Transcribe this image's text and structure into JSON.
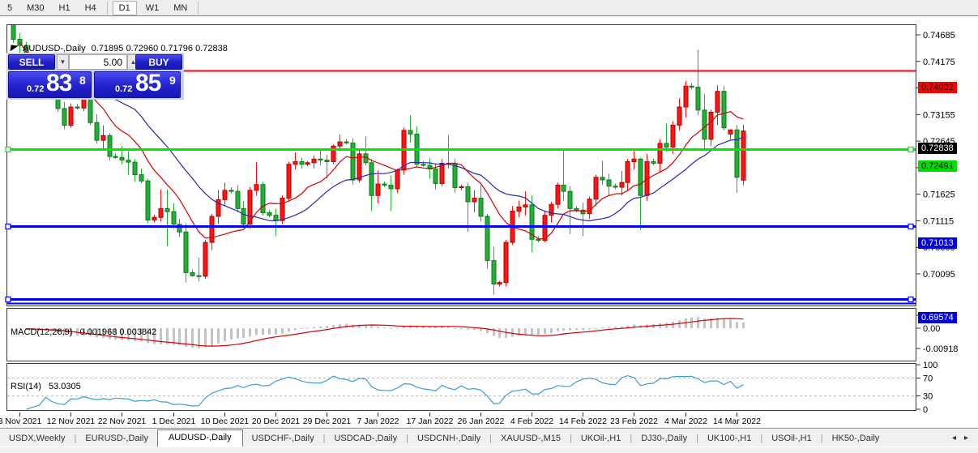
{
  "toolbar": {
    "items": [
      {
        "label": "5",
        "active": false
      },
      {
        "label": "M30",
        "active": false
      },
      {
        "label": "H1",
        "active": false
      },
      {
        "label": "H4",
        "active": false,
        "sep_after": true
      },
      {
        "label": "D1",
        "active": true
      },
      {
        "label": "W1",
        "active": false
      },
      {
        "label": "MN",
        "active": false,
        "sep_after": true
      }
    ]
  },
  "chart": {
    "title_symbol": "AUDUSD-,Daily",
    "title_ohlc": "0.71895 0.72960 0.71796 0.72838"
  },
  "one_click": {
    "sell_label": "SELL",
    "buy_label": "BUY",
    "volume": "5.00",
    "bid": {
      "small": "0.72",
      "big": "83",
      "sup": "8"
    },
    "ask": {
      "small": "0.72",
      "big": "85",
      "sup": "9"
    }
  },
  "price_axis": {
    "ticks": [
      "0.74685",
      "0.74175",
      "0.73665",
      "0.73155",
      "0.72645",
      "0.72135",
      "0.71625",
      "0.71115",
      "0.70605",
      "0.70095"
    ],
    "line_labels": [
      {
        "text": "0.74002",
        "price": 0.74002,
        "bg": "#ff0000",
        "fg": "#000000"
      },
      {
        "text": "0.72838",
        "price": 0.72838,
        "bg": "#000000",
        "fg": "#ffffff"
      },
      {
        "text": "0.72491",
        "price": 0.72491,
        "bg": "#00dc00",
        "fg": "#000000"
      },
      {
        "text": "0.71013",
        "price": 0.71013,
        "bg": "#0000e0",
        "fg": "#ffffff"
      },
      {
        "text": "0.69574",
        "price": 0.69574,
        "bg": "#0000e0",
        "fg": "#ffffff"
      }
    ]
  },
  "date_axis": {
    "labels": [
      {
        "text": "3 Nov 2021",
        "index": 1
      },
      {
        "text": "12 Nov 2021",
        "index": 9
      },
      {
        "text": "22 Nov 2021",
        "index": 17
      },
      {
        "text": "1 Dec 2021",
        "index": 25
      },
      {
        "text": "10 Dec 2021",
        "index": 33
      },
      {
        "text": "20 Dec 2021",
        "index": 41
      },
      {
        "text": "29 Dec 2021",
        "index": 49
      },
      {
        "text": "7 Jan 2022",
        "index": 57
      },
      {
        "text": "17 Jan 2022",
        "index": 65
      },
      {
        "text": "26 Jan 2022",
        "index": 73
      },
      {
        "text": "4 Feb 2022",
        "index": 81
      },
      {
        "text": "14 Feb 2022",
        "index": 89
      },
      {
        "text": "23 Feb 2022",
        "index": 97
      },
      {
        "text": "4 Mar 2022",
        "index": 105
      },
      {
        "text": "14 Mar 2022",
        "index": 113
      }
    ]
  },
  "indicators": {
    "macd": {
      "label": "MACD(12,26,9)",
      "values": "0.001968 0.003842",
      "axis": [
        {
          "text": "0.00585",
          "v": 0.00585
        },
        {
          "text": "0.00",
          "v": 0
        },
        {
          "text": "-0.00918",
          "v": -0.00918
        }
      ]
    },
    "rsi": {
      "label": "RSI(14)",
      "value": "53.0305",
      "axis": [
        {
          "text": "100",
          "v": 100
        },
        {
          "text": "70",
          "v": 70
        },
        {
          "text": "30",
          "v": 30
        },
        {
          "text": "0",
          "v": 0
        }
      ],
      "levels": [
        70,
        30
      ]
    }
  },
  "tabs": {
    "items": [
      {
        "label": "USDX,Weekly",
        "active": false
      },
      {
        "label": "EURUSD-,Daily",
        "active": false
      },
      {
        "label": "AUDUSD-,Daily",
        "active": true
      },
      {
        "label": "USDCHF-,Daily",
        "active": false
      },
      {
        "label": "USDCAD-,Daily",
        "active": false
      },
      {
        "label": "USDCNH-,Daily",
        "active": false
      },
      {
        "label": "XAUUSD-,M15",
        "active": false
      },
      {
        "label": "UKOil-,H1",
        "active": false
      },
      {
        "label": "DJ30-,Daily",
        "active": false
      },
      {
        "label": "UK100-,H1",
        "active": false
      },
      {
        "label": "USOil-,H1",
        "active": false
      },
      {
        "label": "HK50-,Daily",
        "active": false
      }
    ],
    "scroll_left": "◂",
    "scroll_right": "▸"
  },
  "colors": {
    "bull_fill": "#ff1414",
    "bull_stroke": "#b40000",
    "bear_fill": "#1fb034",
    "bear_stroke": "#0d7a20",
    "ma_fast": "#d40000",
    "ma_slow": "#2727b4",
    "hline_red": "#ff0000",
    "hline_green": "#00e800",
    "hline_blue": "#0000ff",
    "macd_hist": "#c4c4c4",
    "macd_signal": "#d40000",
    "rsi_line": "#3e9bd8",
    "rsi_levels": "#bbbbbb",
    "frame": "#3a3a3a"
  },
  "chart_data": {
    "type": "candlestick",
    "symbol": "AUDUSD-",
    "timeframe": "Daily",
    "note": "red = bullish, green = bearish; Sunday mini-bars included",
    "last_bar": {
      "open": 0.71895,
      "high": 0.7296,
      "low": 0.71796,
      "close": 0.72838
    },
    "current_price": 0.72838,
    "x_range": [
      "2 Nov 2021",
      "15 Mar 2022"
    ],
    "y_visible": [
      0.6947,
      0.7489
    ],
    "overlays": {
      "sma_fast_period": 10,
      "sma_slow_period": 20
    },
    "hlines": [
      {
        "price": 0.74002,
        "color": "red",
        "selected": false
      },
      {
        "price": 0.72491,
        "color": "green",
        "selected": true
      },
      {
        "price": 0.71013,
        "color": "blue",
        "selected": true
      },
      {
        "price": 0.69574,
        "color": "blue",
        "selected": true,
        "double": true
      }
    ],
    "macd": {
      "fast": 12,
      "slow": 26,
      "signal": 9,
      "current_main": 0.001968,
      "current_signal": 0.003842,
      "y_range": [
        -0.00918,
        0.00585
      ]
    },
    "rsi": {
      "period": 14,
      "current": 53.0305,
      "levels": [
        70,
        30
      ],
      "y_range": [
        0,
        100
      ]
    },
    "candles": [
      [
        0.7495,
        0.7505,
        0.7453,
        0.746
      ],
      [
        0.746,
        0.7472,
        0.7425,
        0.7448
      ],
      [
        0.7448,
        0.7455,
        0.7385,
        0.74
      ],
      [
        0.74,
        0.7413,
        0.736,
        0.7403
      ],
      [
        0.7403,
        0.7409,
        0.7398,
        0.7406
      ],
      [
        0.7406,
        0.7428,
        0.7395,
        0.7422
      ],
      [
        0.7422,
        0.7432,
        0.737,
        0.7378
      ],
      [
        0.7378,
        0.7398,
        0.732,
        0.7327
      ],
      [
        0.7327,
        0.734,
        0.7287,
        0.7295
      ],
      [
        0.7295,
        0.7337,
        0.729,
        0.733
      ],
      [
        0.733,
        0.7336,
        0.7325,
        0.7328
      ],
      [
        0.7328,
        0.7355,
        0.7322,
        0.7345
      ],
      [
        0.7345,
        0.735,
        0.7295,
        0.73
      ],
      [
        0.73,
        0.7316,
        0.726,
        0.7266
      ],
      [
        0.7266,
        0.7295,
        0.725,
        0.7275
      ],
      [
        0.7275,
        0.728,
        0.7227,
        0.7235
      ],
      [
        0.7235,
        0.7242,
        0.723,
        0.7233
      ],
      [
        0.7233,
        0.7255,
        0.722,
        0.7228
      ],
      [
        0.7228,
        0.7245,
        0.72,
        0.7224
      ],
      [
        0.7224,
        0.723,
        0.7186,
        0.72
      ],
      [
        0.72,
        0.7212,
        0.7184,
        0.7188
      ],
      [
        0.7188,
        0.7192,
        0.7107,
        0.7113
      ],
      [
        0.7113,
        0.7123,
        0.7108,
        0.7118
      ],
      [
        0.7118,
        0.7172,
        0.711,
        0.7135
      ],
      [
        0.7135,
        0.7172,
        0.7063,
        0.7129
      ],
      [
        0.7129,
        0.7145,
        0.7096,
        0.7105
      ],
      [
        0.7105,
        0.7115,
        0.708,
        0.709
      ],
      [
        0.709,
        0.7107,
        0.6993,
        0.7012
      ],
      [
        0.7012,
        0.7018,
        0.7004,
        0.7006
      ],
      [
        0.7006,
        0.704,
        0.6995,
        0.7005
      ],
      [
        0.7005,
        0.7075,
        0.7,
        0.707
      ],
      [
        0.707,
        0.7125,
        0.7055,
        0.712
      ],
      [
        0.712,
        0.717,
        0.7105,
        0.7152
      ],
      [
        0.7152,
        0.7185,
        0.714,
        0.717
      ],
      [
        0.717,
        0.7176,
        0.7164,
        0.7168
      ],
      [
        0.7168,
        0.718,
        0.7128,
        0.7135
      ],
      [
        0.7135,
        0.715,
        0.7098,
        0.7105
      ],
      [
        0.7105,
        0.7176,
        0.7096,
        0.717
      ],
      [
        0.717,
        0.7224,
        0.716,
        0.7181
      ],
      [
        0.7181,
        0.7186,
        0.7122,
        0.7127
      ],
      [
        0.7127,
        0.7132,
        0.7118,
        0.7122
      ],
      [
        0.7122,
        0.7135,
        0.7082,
        0.7112
      ],
      [
        0.7112,
        0.716,
        0.7105,
        0.7155
      ],
      [
        0.7155,
        0.7225,
        0.715,
        0.722
      ],
      [
        0.722,
        0.7243,
        0.721,
        0.7225
      ],
      [
        0.7225,
        0.7232,
        0.7212,
        0.722
      ],
      [
        0.722,
        0.7226,
        0.7216,
        0.7223
      ],
      [
        0.7223,
        0.7237,
        0.7212,
        0.723
      ],
      [
        0.723,
        0.725,
        0.7218,
        0.7228
      ],
      [
        0.7228,
        0.7238,
        0.7192,
        0.7225
      ],
      [
        0.7225,
        0.7258,
        0.722,
        0.7255
      ],
      [
        0.7255,
        0.7277,
        0.7245,
        0.7263
      ],
      [
        0.7263,
        0.7268,
        0.7258,
        0.7261
      ],
      [
        0.7261,
        0.727,
        0.7181,
        0.719
      ],
      [
        0.719,
        0.7247,
        0.7185,
        0.724
      ],
      [
        0.724,
        0.7273,
        0.7218,
        0.7223
      ],
      [
        0.7223,
        0.723,
        0.713,
        0.716
      ],
      [
        0.716,
        0.7208,
        0.7145,
        0.7182
      ],
      [
        0.7182,
        0.7187,
        0.7176,
        0.718
      ],
      [
        0.718,
        0.7198,
        0.713,
        0.7173
      ],
      [
        0.7173,
        0.7212,
        0.7165,
        0.7209
      ],
      [
        0.7209,
        0.7291,
        0.72,
        0.7285
      ],
      [
        0.7285,
        0.7314,
        0.7262,
        0.7278
      ],
      [
        0.7278,
        0.7293,
        0.7215,
        0.722
      ],
      [
        0.722,
        0.7226,
        0.7215,
        0.7218
      ],
      [
        0.7218,
        0.7232,
        0.7192,
        0.7211
      ],
      [
        0.7211,
        0.7222,
        0.7172,
        0.7183
      ],
      [
        0.7183,
        0.723,
        0.7178,
        0.7222
      ],
      [
        0.7222,
        0.7276,
        0.7212,
        0.722
      ],
      [
        0.722,
        0.723,
        0.7165,
        0.7175
      ],
      [
        0.7175,
        0.7181,
        0.717,
        0.7177
      ],
      [
        0.7177,
        0.7185,
        0.709,
        0.7148
      ],
      [
        0.7148,
        0.717,
        0.7128,
        0.7155
      ],
      [
        0.7155,
        0.718,
        0.711,
        0.712
      ],
      [
        0.712,
        0.7125,
        0.702,
        0.7035
      ],
      [
        0.7035,
        0.7062,
        0.697,
        0.699
      ],
      [
        0.699,
        0.6996,
        0.6985,
        0.6993
      ],
      [
        0.6993,
        0.7075,
        0.6985,
        0.707
      ],
      [
        0.707,
        0.714,
        0.7065,
        0.713
      ],
      [
        0.713,
        0.715,
        0.7118,
        0.7138
      ],
      [
        0.7138,
        0.7168,
        0.7122,
        0.7142
      ],
      [
        0.7142,
        0.716,
        0.7051,
        0.7076
      ],
      [
        0.7076,
        0.7082,
        0.707,
        0.7074
      ],
      [
        0.7074,
        0.713,
        0.707,
        0.7122
      ],
      [
        0.7122,
        0.7148,
        0.7108,
        0.7143
      ],
      [
        0.7143,
        0.7185,
        0.7135,
        0.718
      ],
      [
        0.718,
        0.7249,
        0.715,
        0.7168
      ],
      [
        0.7168,
        0.7178,
        0.7086,
        0.7135
      ],
      [
        0.7135,
        0.714,
        0.7128,
        0.7132
      ],
      [
        0.7132,
        0.7146,
        0.7082,
        0.7125
      ],
      [
        0.7125,
        0.7158,
        0.7115,
        0.7153
      ],
      [
        0.7153,
        0.72,
        0.714,
        0.7195
      ],
      [
        0.7195,
        0.7227,
        0.718,
        0.719
      ],
      [
        0.719,
        0.7202,
        0.716,
        0.7178
      ],
      [
        0.7178,
        0.7183,
        0.7172,
        0.7176
      ],
      [
        0.7176,
        0.7207,
        0.716,
        0.7185
      ],
      [
        0.7185,
        0.723,
        0.717,
        0.7225
      ],
      [
        0.7225,
        0.7246,
        0.721,
        0.723
      ],
      [
        0.723,
        0.7233,
        0.7094,
        0.716
      ],
      [
        0.716,
        0.724,
        0.715,
        0.7225
      ],
      [
        0.7225,
        0.7231,
        0.7218,
        0.7222
      ],
      [
        0.7222,
        0.7268,
        0.7205,
        0.726
      ],
      [
        0.726,
        0.7298,
        0.7244,
        0.7253
      ],
      [
        0.7253,
        0.7303,
        0.724,
        0.7295
      ],
      [
        0.7295,
        0.7347,
        0.7285,
        0.733
      ],
      [
        0.733,
        0.738,
        0.731,
        0.737
      ],
      [
        0.737,
        0.7376,
        0.7364,
        0.7368
      ],
      [
        0.7368,
        0.744,
        0.7314,
        0.7324
      ],
      [
        0.7324,
        0.7355,
        0.7245,
        0.7268
      ],
      [
        0.7268,
        0.7325,
        0.7255,
        0.732
      ],
      [
        0.732,
        0.7372,
        0.7295,
        0.736
      ],
      [
        0.736,
        0.737,
        0.7285,
        0.729
      ],
      [
        0.7278,
        0.7287,
        0.7268,
        0.7286
      ],
      [
        0.7286,
        0.7295,
        0.7165,
        0.7195
      ],
      [
        0.71895,
        0.7296,
        0.71796,
        0.72838
      ]
    ]
  }
}
